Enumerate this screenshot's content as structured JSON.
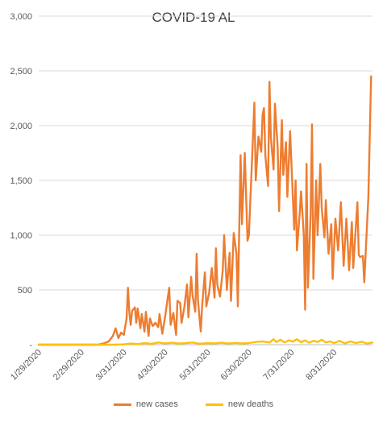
{
  "chart_data": {
    "type": "line",
    "title": "COVID-19 AL",
    "xlabel": "",
    "ylabel": "",
    "ylim": [
      0,
      3000
    ],
    "y_ticks": [
      "-",
      "500",
      "1,000",
      "1,500",
      "2,000",
      "2,500",
      "3,000"
    ],
    "y_tick_values": [
      0,
      500,
      1000,
      1500,
      2000,
      2500,
      3000
    ],
    "x_ticks": [
      "1/29/2020",
      "2/29/2020",
      "3/31/2020",
      "4/30/2020",
      "5/31/2020",
      "6/30/2020",
      "7/31/2020",
      "8/31/2020"
    ],
    "x_start": "2020-01-29",
    "x_end": "2020-09-28",
    "grid": "horizontal",
    "legend_position": "bottom",
    "series": [
      {
        "name": "new cases",
        "color": "#ED7D31",
        "points": [
          [
            "2020-01-29",
            0
          ],
          [
            "2020-03-12",
            0
          ],
          [
            "2020-03-16",
            10
          ],
          [
            "2020-03-20",
            30
          ],
          [
            "2020-03-23",
            80
          ],
          [
            "2020-03-25",
            150
          ],
          [
            "2020-03-27",
            60
          ],
          [
            "2020-03-29",
            110
          ],
          [
            "2020-03-31",
            90
          ],
          [
            "2020-04-02",
            240
          ],
          [
            "2020-04-03",
            520
          ],
          [
            "2020-04-04",
            300
          ],
          [
            "2020-04-05",
            180
          ],
          [
            "2020-04-06",
            310
          ],
          [
            "2020-04-08",
            340
          ],
          [
            "2020-04-09",
            200
          ],
          [
            "2020-04-10",
            330
          ],
          [
            "2020-04-12",
            150
          ],
          [
            "2020-04-13",
            280
          ],
          [
            "2020-04-15",
            120
          ],
          [
            "2020-04-16",
            300
          ],
          [
            "2020-04-18",
            80
          ],
          [
            "2020-04-19",
            240
          ],
          [
            "2020-04-21",
            170
          ],
          [
            "2020-04-23",
            200
          ],
          [
            "2020-04-25",
            160
          ],
          [
            "2020-04-26",
            280
          ],
          [
            "2020-04-28",
            100
          ],
          [
            "2020-04-30",
            250
          ],
          [
            "2020-05-02",
            430
          ],
          [
            "2020-05-03",
            520
          ],
          [
            "2020-05-04",
            180
          ],
          [
            "2020-05-06",
            290
          ],
          [
            "2020-05-08",
            90
          ],
          [
            "2020-05-09",
            400
          ],
          [
            "2020-05-11",
            380
          ],
          [
            "2020-05-12",
            200
          ],
          [
            "2020-05-14",
            340
          ],
          [
            "2020-05-16",
            550
          ],
          [
            "2020-05-17",
            250
          ],
          [
            "2020-05-19",
            620
          ],
          [
            "2020-05-20",
            450
          ],
          [
            "2020-05-22",
            300
          ],
          [
            "2020-05-23",
            830
          ],
          [
            "2020-05-24",
            400
          ],
          [
            "2020-05-26",
            120
          ],
          [
            "2020-05-27",
            350
          ],
          [
            "2020-05-29",
            660
          ],
          [
            "2020-05-30",
            350
          ],
          [
            "2020-06-01",
            470
          ],
          [
            "2020-06-03",
            700
          ],
          [
            "2020-06-05",
            430
          ],
          [
            "2020-06-06",
            880
          ],
          [
            "2020-06-07",
            550
          ],
          [
            "2020-06-09",
            440
          ],
          [
            "2020-06-11",
            680
          ],
          [
            "2020-06-12",
            1000
          ],
          [
            "2020-06-14",
            500
          ],
          [
            "2020-06-16",
            840
          ],
          [
            "2020-06-17",
            400
          ],
          [
            "2020-06-19",
            1020
          ],
          [
            "2020-06-21",
            830
          ],
          [
            "2020-06-22",
            350
          ],
          [
            "2020-06-24",
            1730
          ],
          [
            "2020-06-25",
            1100
          ],
          [
            "2020-06-27",
            1750
          ],
          [
            "2020-06-29",
            950
          ],
          [
            "2020-06-30",
            1000
          ],
          [
            "2020-07-02",
            1600
          ],
          [
            "2020-07-03",
            1900
          ],
          [
            "2020-07-04",
            2210
          ],
          [
            "2020-07-05",
            1500
          ],
          [
            "2020-07-07",
            1900
          ],
          [
            "2020-07-09",
            1760
          ],
          [
            "2020-07-10",
            2100
          ],
          [
            "2020-07-11",
            2160
          ],
          [
            "2020-07-12",
            1730
          ],
          [
            "2020-07-14",
            1450
          ],
          [
            "2020-07-15",
            2400
          ],
          [
            "2020-07-16",
            1900
          ],
          [
            "2020-07-18",
            1600
          ],
          [
            "2020-07-19",
            2200
          ],
          [
            "2020-07-21",
            1800
          ],
          [
            "2020-07-22",
            1220
          ],
          [
            "2020-07-24",
            2050
          ],
          [
            "2020-07-25",
            1550
          ],
          [
            "2020-07-27",
            1850
          ],
          [
            "2020-07-28",
            1350
          ],
          [
            "2020-07-30",
            1950
          ],
          [
            "2020-07-31",
            1650
          ],
          [
            "2020-08-02",
            1050
          ],
          [
            "2020-08-03",
            1500
          ],
          [
            "2020-08-04",
            860
          ],
          [
            "2020-08-06",
            1200
          ],
          [
            "2020-08-07",
            1400
          ],
          [
            "2020-08-09",
            1000
          ],
          [
            "2020-08-10",
            320
          ],
          [
            "2020-08-11",
            1650
          ],
          [
            "2020-08-12",
            520
          ],
          [
            "2020-08-14",
            1200
          ],
          [
            "2020-08-15",
            2010
          ],
          [
            "2020-08-16",
            600
          ],
          [
            "2020-08-18",
            1500
          ],
          [
            "2020-08-19",
            1000
          ],
          [
            "2020-08-21",
            1650
          ],
          [
            "2020-08-22",
            1250
          ],
          [
            "2020-08-24",
            980
          ],
          [
            "2020-08-25",
            1320
          ],
          [
            "2020-08-27",
            830
          ],
          [
            "2020-08-29",
            1100
          ],
          [
            "2020-08-30",
            600
          ],
          [
            "2020-09-01",
            1150
          ],
          [
            "2020-09-03",
            860
          ],
          [
            "2020-09-05",
            1300
          ],
          [
            "2020-09-07",
            720
          ],
          [
            "2020-09-09",
            1150
          ],
          [
            "2020-09-11",
            680
          ],
          [
            "2020-09-13",
            1120
          ],
          [
            "2020-09-14",
            700
          ],
          [
            "2020-09-17",
            1300
          ],
          [
            "2020-09-18",
            820
          ],
          [
            "2020-09-19",
            800
          ],
          [
            "2020-09-21",
            810
          ],
          [
            "2020-09-22",
            570
          ],
          [
            "2020-09-25",
            1350
          ],
          [
            "2020-09-27",
            2450
          ]
        ]
      },
      {
        "name": "new deaths",
        "color": "#FFC000",
        "points": [
          [
            "2020-01-29",
            0
          ],
          [
            "2020-03-25",
            0
          ],
          [
            "2020-03-31",
            3
          ],
          [
            "2020-04-05",
            10
          ],
          [
            "2020-04-10",
            5
          ],
          [
            "2020-04-15",
            15
          ],
          [
            "2020-04-20",
            8
          ],
          [
            "2020-04-25",
            20
          ],
          [
            "2020-04-30",
            12
          ],
          [
            "2020-05-05",
            18
          ],
          [
            "2020-05-10",
            10
          ],
          [
            "2020-05-15",
            14
          ],
          [
            "2020-05-20",
            20
          ],
          [
            "2020-05-25",
            8
          ],
          [
            "2020-05-31",
            15
          ],
          [
            "2020-06-05",
            12
          ],
          [
            "2020-06-10",
            18
          ],
          [
            "2020-06-15",
            10
          ],
          [
            "2020-06-20",
            16
          ],
          [
            "2020-06-25",
            12
          ],
          [
            "2020-06-30",
            15
          ],
          [
            "2020-07-05",
            25
          ],
          [
            "2020-07-10",
            30
          ],
          [
            "2020-07-15",
            20
          ],
          [
            "2020-07-18",
            50
          ],
          [
            "2020-07-20",
            25
          ],
          [
            "2020-07-23",
            45
          ],
          [
            "2020-07-26",
            20
          ],
          [
            "2020-07-29",
            40
          ],
          [
            "2020-08-01",
            28
          ],
          [
            "2020-08-04",
            50
          ],
          [
            "2020-08-07",
            22
          ],
          [
            "2020-08-10",
            40
          ],
          [
            "2020-08-13",
            18
          ],
          [
            "2020-08-16",
            35
          ],
          [
            "2020-08-19",
            25
          ],
          [
            "2020-08-22",
            45
          ],
          [
            "2020-08-25",
            20
          ],
          [
            "2020-08-28",
            30
          ],
          [
            "2020-08-31",
            15
          ],
          [
            "2020-09-04",
            35
          ],
          [
            "2020-09-08",
            12
          ],
          [
            "2020-09-12",
            30
          ],
          [
            "2020-09-16",
            15
          ],
          [
            "2020-09-20",
            28
          ],
          [
            "2020-09-24",
            10
          ],
          [
            "2020-09-28",
            20
          ]
        ]
      }
    ]
  }
}
